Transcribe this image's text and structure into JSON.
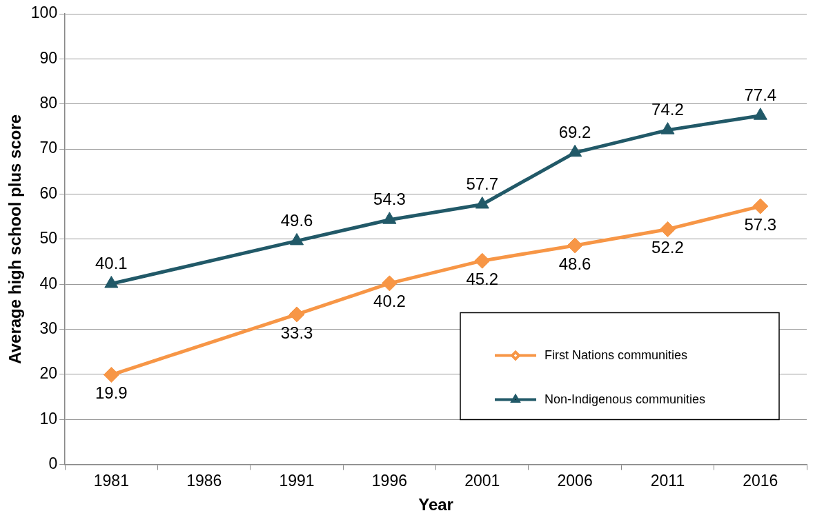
{
  "chart_data": {
    "type": "line",
    "xlabel": "Year",
    "ylabel": "Average high school plus score",
    "categories": [
      "1981",
      "1986",
      "1991",
      "1996",
      "2001",
      "2006",
      "2011",
      "2016"
    ],
    "series": [
      {
        "name": "First Nations communities",
        "color": "#f79646",
        "marker": "diamond",
        "values": [
          19.9,
          null,
          33.3,
          40.2,
          45.2,
          48.6,
          52.2,
          57.3
        ]
      },
      {
        "name": "Non-Indigenous communities",
        "color": "#215968",
        "marker": "triangle",
        "values": [
          40.1,
          null,
          49.6,
          54.3,
          57.7,
          69.2,
          74.2,
          77.4
        ]
      }
    ],
    "ylim": [
      0,
      100
    ],
    "yticks": [
      0,
      10,
      20,
      30,
      40,
      50,
      60,
      70,
      80,
      90,
      100
    ],
    "grid": "y",
    "legend": "bottom right",
    "data_labels": true
  }
}
